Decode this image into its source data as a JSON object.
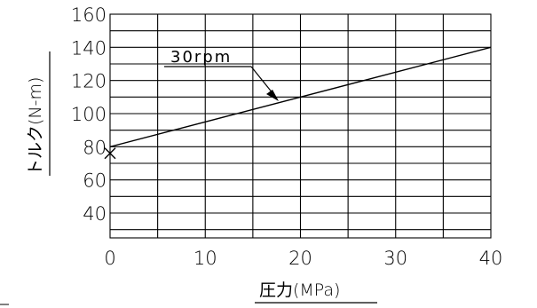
{
  "chart_data": {
    "type": "line",
    "xlabel": "圧力(MPa)",
    "ylabel": "トルク(N-m)",
    "xlim": [
      0,
      40
    ],
    "ylim": [
      25,
      160
    ],
    "x_ticks": [
      "0",
      "10",
      "20",
      "30",
      "40"
    ],
    "y_ticks": [
      "160",
      "140",
      "120",
      "100",
      "80",
      "60",
      "40"
    ],
    "grid": true,
    "annotation": "30rpm",
    "series": [
      {
        "name": "",
        "x": [
          0,
          40
        ],
        "y": [
          80,
          140
        ]
      }
    ],
    "marker_point": {
      "x": 0,
      "y": 76
    }
  }
}
